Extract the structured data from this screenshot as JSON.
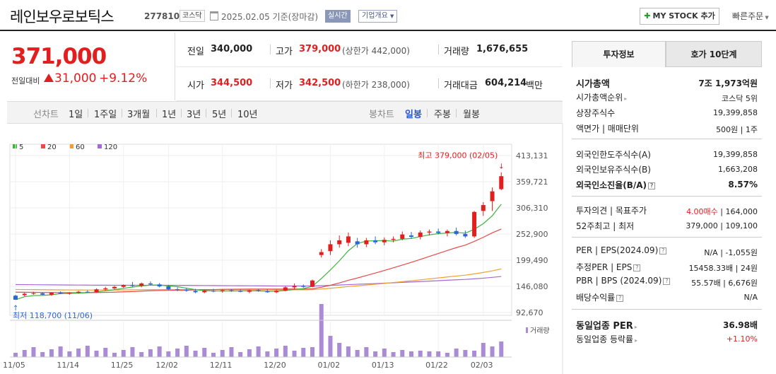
{
  "header": {
    "stock_name": "레인보우로보틱스",
    "code": "277810",
    "market": "코스닥",
    "date": "2025.02.05",
    "date_suffix": "기준(장마감)",
    "realtime": "실시간",
    "company_info": "기업개요",
    "my_stock": "MY STOCK 추가",
    "quick_order": "빠른주문"
  },
  "price": {
    "current": "371,000",
    "change_label": "전일대비",
    "change": "31,000",
    "change_pct": "+9.12%"
  },
  "stats": {
    "prev_close_label": "전일",
    "prev_close": "340,000",
    "high_label": "고가",
    "high": "379,000",
    "upper_limit": "(상한가 442,000)",
    "volume_label": "거래량",
    "volume": "1,676,655",
    "open_label": "시가",
    "open": "344,500",
    "low_label": "저가",
    "low": "342,500",
    "lower_limit": "(하한가 238,000)",
    "amount_label": "거래대금",
    "amount": "604,214",
    "amount_unit": "백만"
  },
  "line_tabs": {
    "label": "선차트",
    "items": [
      "1일",
      "1주일",
      "3개월",
      "1년",
      "3년",
      "5년",
      "10년"
    ]
  },
  "candle_tabs": {
    "label": "봉차트",
    "items": [
      "일봉",
      "주봉",
      "월봉"
    ],
    "selected": "일봉"
  },
  "legend": [
    {
      "label": "5",
      "color": "#3cb43c"
    },
    {
      "label": "20",
      "color": "#e84a4a"
    },
    {
      "label": "60",
      "color": "#f0a030"
    },
    {
      "label": "120",
      "color": "#a46ad4"
    }
  ],
  "chart": {
    "y_ticks": [
      "413,131",
      "359,721",
      "306,310",
      "252,900",
      "199,490",
      "146,080",
      "92,670"
    ],
    "high_note": "최고 379,000 (02/05)",
    "low_note": "최저 118,700 (11/06)",
    "volume_legend": "거래량",
    "x_ticks": [
      "11/05",
      "11/14",
      "11/25",
      "12/02",
      "12/11",
      "12/20",
      "01/02",
      "01/13",
      "01/22",
      "02/03"
    ]
  },
  "chart_data": {
    "type": "candlestick",
    "title": "",
    "x_labels": [
      "11/05",
      "11/14",
      "11/25",
      "12/02",
      "12/11",
      "12/20",
      "01/02",
      "01/13",
      "01/22",
      "02/03"
    ],
    "candles": [
      [
        127000,
        129000,
        120000,
        118700
      ],
      [
        128000,
        133000,
        126000,
        131000
      ],
      [
        131000,
        135000,
        129000,
        132000
      ],
      [
        132000,
        134000,
        128000,
        129000
      ],
      [
        129000,
        134000,
        127000,
        133000
      ],
      [
        133000,
        136000,
        130000,
        131000
      ],
      [
        131000,
        134000,
        129000,
        133000
      ],
      [
        133000,
        137000,
        131000,
        135000
      ],
      [
        135000,
        138000,
        133000,
        134000
      ],
      [
        134000,
        142000,
        133000,
        140000
      ],
      [
        140000,
        145000,
        138000,
        142000
      ],
      [
        142000,
        147000,
        140000,
        145000
      ],
      [
        145000,
        150000,
        143000,
        149000
      ],
      [
        149000,
        155000,
        145000,
        147000
      ],
      [
        147000,
        154000,
        144000,
        152000
      ],
      [
        152000,
        156000,
        148000,
        150000
      ],
      [
        150000,
        153000,
        144000,
        146000
      ],
      [
        146000,
        149000,
        138000,
        140000
      ],
      [
        140000,
        144000,
        136000,
        139000
      ],
      [
        139000,
        143000,
        135000,
        137000
      ],
      [
        137000,
        141000,
        132000,
        134000
      ],
      [
        134000,
        139000,
        132000,
        137000
      ],
      [
        137000,
        141000,
        134000,
        136000
      ],
      [
        136000,
        140000,
        133000,
        138000
      ],
      [
        138000,
        141000,
        135000,
        137000
      ],
      [
        137000,
        140000,
        134000,
        135000
      ],
      [
        135000,
        139000,
        132000,
        138000
      ],
      [
        138000,
        141000,
        135000,
        136000
      ],
      [
        136000,
        140000,
        133000,
        134000
      ],
      [
        134000,
        139000,
        132000,
        137000
      ],
      [
        137000,
        146000,
        136000,
        144000
      ],
      [
        144000,
        152000,
        140000,
        147000
      ],
      [
        147000,
        150000,
        143000,
        145000
      ],
      [
        145000,
        160000,
        144000,
        158000
      ],
      [
        210000,
        222000,
        205000,
        216000
      ],
      [
        218000,
        240000,
        210000,
        232000
      ],
      [
        232000,
        250000,
        225000,
        240000
      ],
      [
        235000,
        256000,
        228000,
        248000
      ],
      [
        238000,
        245000,
        225000,
        232000
      ],
      [
        232000,
        245000,
        226000,
        240000
      ],
      [
        240000,
        248000,
        232000,
        236000
      ],
      [
        236000,
        246000,
        230000,
        241000
      ],
      [
        241000,
        248000,
        236000,
        243000
      ],
      [
        243000,
        258000,
        240000,
        252000
      ],
      [
        250000,
        257000,
        243000,
        247000
      ],
      [
        247000,
        260000,
        242000,
        256000
      ],
      [
        256000,
        262000,
        250000,
        258000
      ],
      [
        258000,
        264000,
        252000,
        255000
      ],
      [
        255000,
        262000,
        248000,
        259000
      ],
      [
        259000,
        266000,
        250000,
        253000
      ],
      [
        253000,
        260000,
        245000,
        248000
      ],
      [
        248000,
        300000,
        245000,
        298000
      ],
      [
        300000,
        318000,
        290000,
        312000
      ],
      [
        320000,
        348000,
        300000,
        340000
      ],
      [
        344500,
        379000,
        342500,
        371000
      ]
    ],
    "ma": {
      "5": "green",
      "20": "red",
      "60": "orange",
      "120": "purple"
    },
    "ylim": [
      92670,
      413131
    ]
  },
  "side": {
    "tab_info": "투자정보",
    "tab_quote": "호가 10단계",
    "mcap_label": "시가총액",
    "mcap": "7조 1,973억원",
    "mcap_rank_label": "시가총액순위",
    "mcap_rank": "코스닥 5위",
    "shares_label": "상장주식수",
    "shares": "19,399,858",
    "par_label": "액면가",
    "unit_label": "매매단위",
    "par_unit": "500원 | 1주",
    "foreign_limit_label": "외국인한도주식수(A)",
    "foreign_limit": "19,399,858",
    "foreign_hold_label": "외국인보유주식수(B)",
    "foreign_hold": "1,663,208",
    "foreign_ratio_label": "외국인소진율(B/A)",
    "foreign_ratio": "8.57%",
    "opinion_label": "투자의견",
    "target_label": "목표주가",
    "opinion": "4.00매수",
    "target": "164,000",
    "w52_label": "52주최고",
    "w52_low_label": "최저",
    "w52": "379,000 | 109,100",
    "per_label": "PER",
    "eps_label": "EPS(2024.09)",
    "per_eps": "N/A | -1,055원",
    "est_per_label": "추정PER",
    "est_eps_label": "EPS",
    "est_per_eps": "15458.33배 | 24원",
    "pbr_label": "PBR",
    "bps_label": "BPS (2024.09)",
    "pbr_bps": "55.57배 | 6,676원",
    "div_label": "배당수익률",
    "div": "N/A",
    "sector_per_label": "동일업종 PER",
    "sector_per": "36.98배",
    "sector_rate_label": "동일업종 등락률",
    "sector_rate": "+1.10%"
  }
}
